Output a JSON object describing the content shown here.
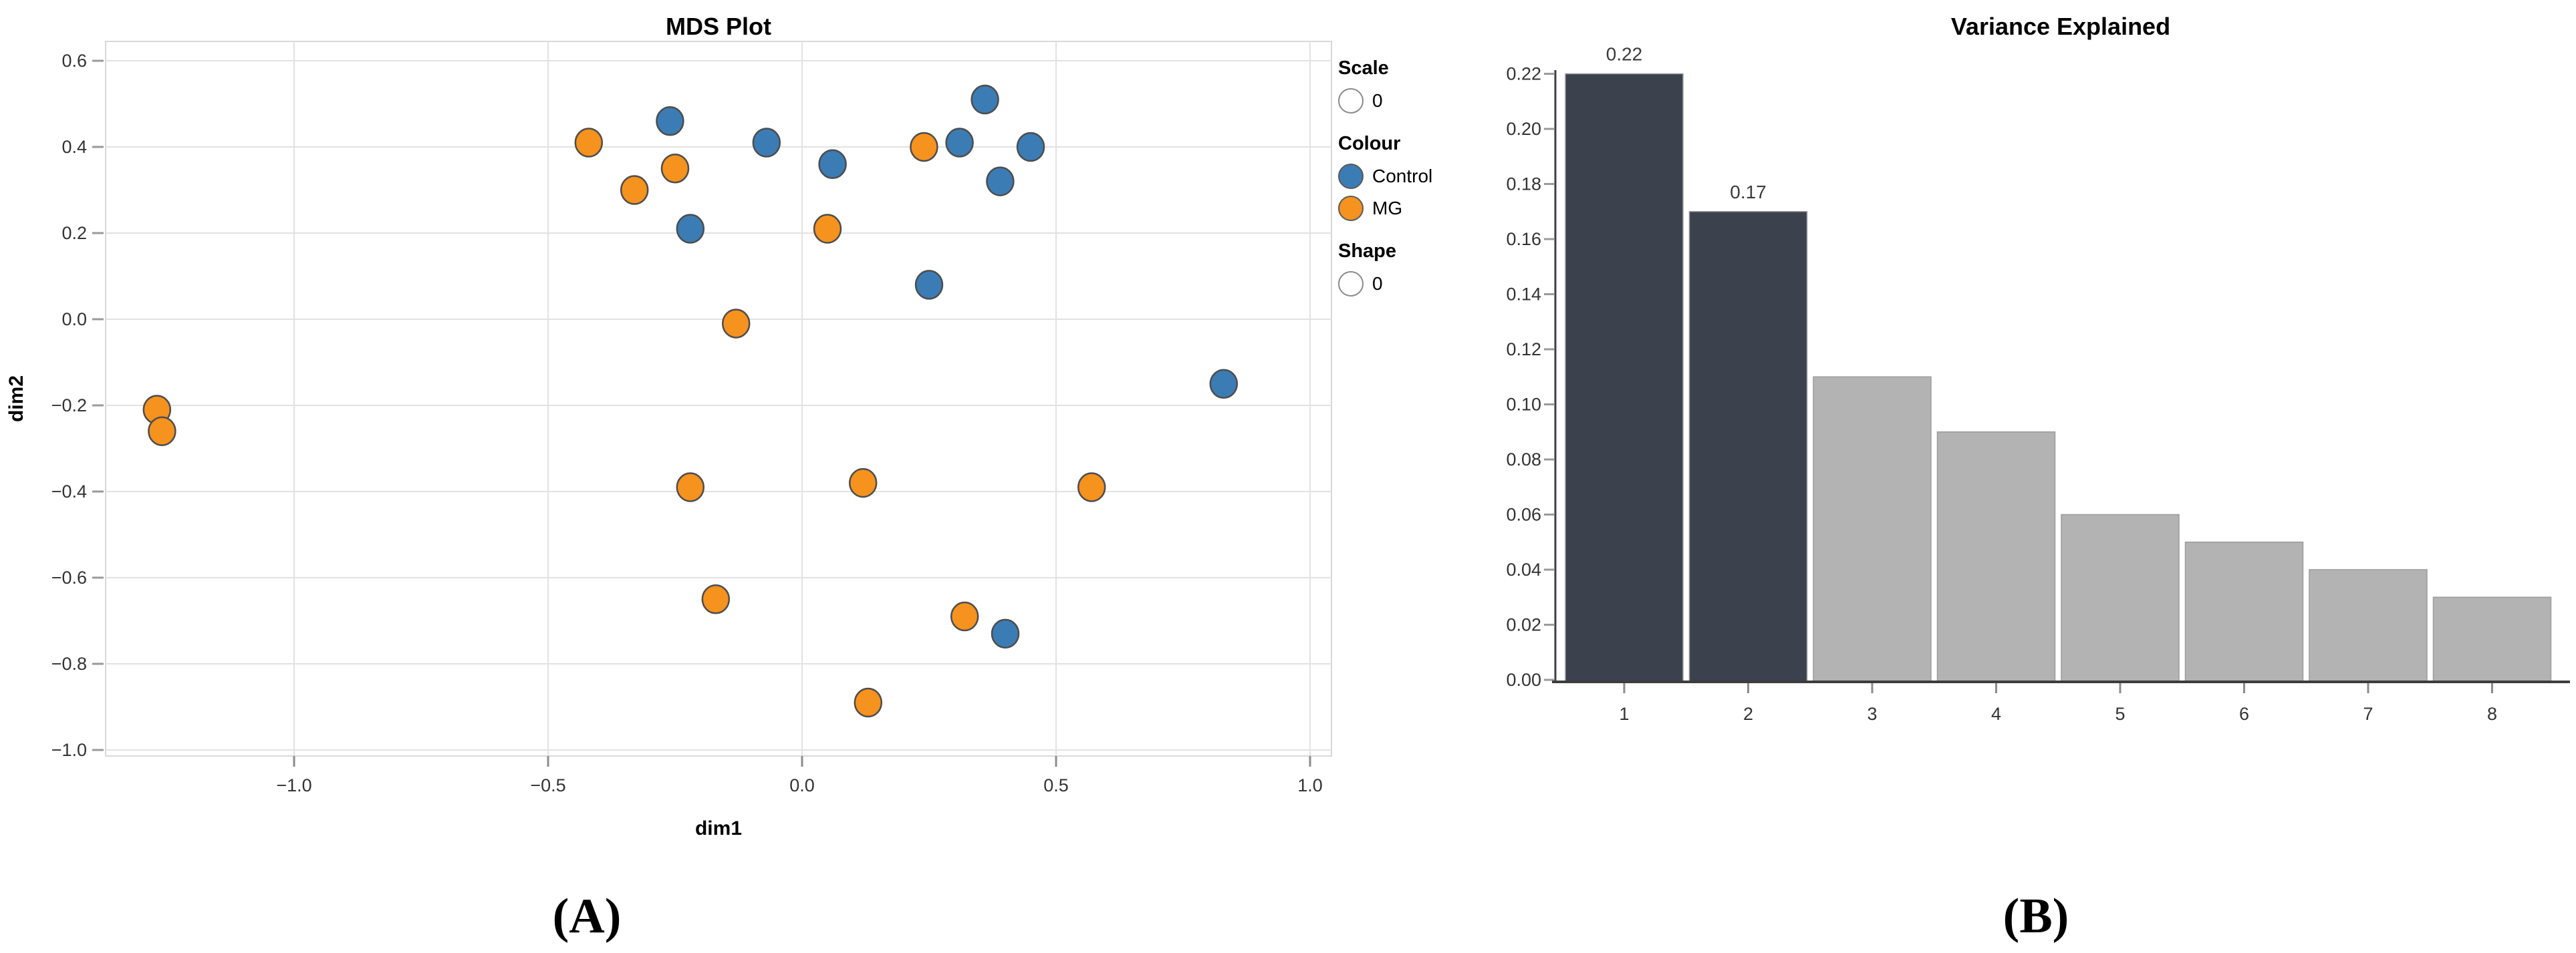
{
  "captions": {
    "a": "(A)",
    "b": "(B)"
  },
  "legend": {
    "scale_title": "Scale",
    "scale_item": "0",
    "colour_title": "Colour",
    "colour_items": [
      {
        "label": "Control",
        "color": "#3b7cb5"
      },
      {
        "label": "MG",
        "color": "#f6921e"
      }
    ],
    "shape_title": "Shape",
    "shape_item": "0"
  },
  "chart_data": [
    {
      "type": "scatter",
      "title": "MDS Plot",
      "xlabel": "dim1",
      "ylabel": "dim2",
      "xlim": [
        -1.37,
        1.04
      ],
      "ylim": [
        -1.02,
        0.64
      ],
      "grid": true,
      "legend_position": "right",
      "x_ticks": [
        -1.0,
        -0.5,
        0.0,
        0.5,
        1.0
      ],
      "x_tick_labels": [
        "−1.0",
        "−0.5",
        "0.0",
        "0.5",
        "1.0"
      ],
      "y_ticks": [
        0.6,
        0.4,
        0.2,
        0.0,
        -0.2,
        -0.4,
        -0.6,
        -0.8,
        -1.0
      ],
      "y_tick_labels": [
        "0.6",
        "0.4",
        "0.2",
        "0.0",
        "−0.2",
        "−0.4",
        "−0.6",
        "−0.8",
        "−1.0"
      ],
      "series": [
        {
          "name": "Control",
          "color": "#3b7cb5",
          "points": [
            [
              -0.26,
              0.46
            ],
            [
              -0.22,
              0.21
            ],
            [
              -0.07,
              0.41
            ],
            [
              0.06,
              0.36
            ],
            [
              0.36,
              0.51
            ],
            [
              0.31,
              0.41
            ],
            [
              0.45,
              0.4
            ],
            [
              0.39,
              0.32
            ],
            [
              0.25,
              0.08
            ],
            [
              0.83,
              -0.15
            ],
            [
              0.4,
              -0.73
            ]
          ]
        },
        {
          "name": "MG",
          "color": "#f6921e",
          "points": [
            [
              -0.42,
              0.41
            ],
            [
              -0.33,
              0.3
            ],
            [
              -0.25,
              0.35
            ],
            [
              0.24,
              0.4
            ],
            [
              0.05,
              0.21
            ],
            [
              -0.13,
              -0.01
            ],
            [
              -1.27,
              -0.21
            ],
            [
              -1.26,
              -0.26
            ],
            [
              -0.22,
              -0.39
            ],
            [
              0.12,
              -0.38
            ],
            [
              0.57,
              -0.39
            ],
            [
              -0.17,
              -0.65
            ],
            [
              0.32,
              -0.69
            ],
            [
              0.13,
              -0.89
            ]
          ]
        }
      ]
    },
    {
      "type": "bar",
      "title": "Variance Explained",
      "xlabel": "",
      "ylabel": "",
      "grid": false,
      "ylim": [
        0.0,
        0.22
      ],
      "categories": [
        "1",
        "2",
        "3",
        "4",
        "5",
        "6",
        "7",
        "8"
      ],
      "values": [
        0.22,
        0.17,
        0.11,
        0.09,
        0.06,
        0.05,
        0.04,
        0.03
      ],
      "bar_colors": [
        "#3b414d",
        "#3b414d",
        "#b3b3b3",
        "#b3b3b3",
        "#b3b3b3",
        "#b3b3b3",
        "#b3b3b3",
        "#b3b3b3"
      ],
      "value_labels": [
        "0.22",
        "0.17",
        "",
        "",
        "",
        "",
        "",
        ""
      ],
      "y_ticks": [
        0.0,
        0.02,
        0.04,
        0.06,
        0.08,
        0.1,
        0.12,
        0.14,
        0.16,
        0.18,
        0.2,
        0.22
      ],
      "y_tick_labels": [
        "0.00",
        "0.02",
        "0.04",
        "0.06",
        "0.08",
        "0.10",
        "0.12",
        "0.14",
        "0.16",
        "0.18",
        "0.20",
        "0.22"
      ]
    }
  ],
  "colors": {
    "grid_line": "#e2e2e2",
    "panel_border": "#d8d8d8",
    "tick": "#9a9a9a",
    "tick_label": "#333333",
    "axis_line": "#3d3d3d",
    "marker_stroke": "#4d4d4d",
    "bar_stroke": "#9c9c9c",
    "value_label": "#3a3a3a"
  }
}
